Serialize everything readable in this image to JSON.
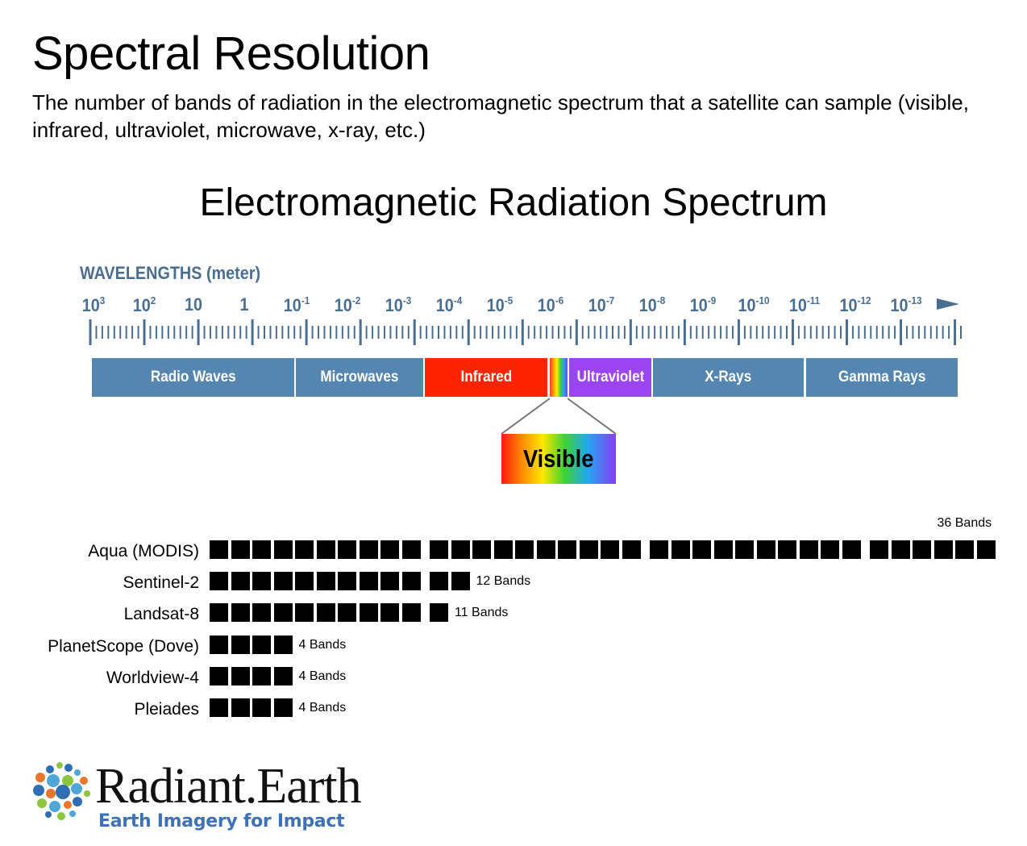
{
  "title": "Spectral Resolution",
  "subtitle": "The number of bands of radiation in the electromagnetic spectrum that a satellite can sample (visible, infrared, ultraviolet, microwave, x-ray, etc.)",
  "diagram_title": "Electromagnetic Radiation Spectrum",
  "wavelength_heading": "WAVELENGTHS (meter)",
  "wavelength_ticks": [
    {
      "base": "10",
      "exp": "3"
    },
    {
      "base": "10",
      "exp": "2"
    },
    {
      "base": "10",
      "exp": ""
    },
    {
      "base": "1",
      "exp": ""
    },
    {
      "base": "10",
      "exp": "-1"
    },
    {
      "base": "10",
      "exp": "-2"
    },
    {
      "base": "10",
      "exp": "-3"
    },
    {
      "base": "10",
      "exp": "-4"
    },
    {
      "base": "10",
      "exp": "-5"
    },
    {
      "base": "10",
      "exp": "-6"
    },
    {
      "base": "10",
      "exp": "-7"
    },
    {
      "base": "10",
      "exp": "-8"
    },
    {
      "base": "10",
      "exp": "-9"
    },
    {
      "base": "10",
      "exp": "-10"
    },
    {
      "base": "10",
      "exp": "-11"
    },
    {
      "base": "10",
      "exp": "-12"
    },
    {
      "base": "10",
      "exp": "-13"
    }
  ],
  "spectrum_bands": [
    {
      "label": "Radio Waves",
      "color": "#5585b1"
    },
    {
      "label": "Microwaves",
      "color": "#5585b1"
    },
    {
      "label": "Infrared",
      "color": "#ff2400"
    },
    {
      "label": "Ultraviolet",
      "color": "#9a44f2"
    },
    {
      "label": "X-Rays",
      "color": "#5585b1"
    },
    {
      "label": "Gamma Rays",
      "color": "#5585b1"
    }
  ],
  "visible_label": "Visible",
  "satellites": [
    {
      "name": "Aqua (MODIS)",
      "bands": 36,
      "band_label": "36 Bands"
    },
    {
      "name": "Sentinel-2",
      "bands": 12,
      "band_label": "12 Bands"
    },
    {
      "name": "Landsat-8",
      "bands": 11,
      "band_label": "11 Bands"
    },
    {
      "name": "PlanetScope (Dove)",
      "bands": 4,
      "band_label": "4 Bands"
    },
    {
      "name": "Worldview-4",
      "bands": 4,
      "band_label": "4 Bands"
    },
    {
      "name": "Pleiades",
      "bands": 4,
      "band_label": "4 Bands"
    }
  ],
  "logo": {
    "name": "Radiant.Earth",
    "tagline": "Earth Imagery for Impact"
  },
  "colors": {
    "accent": "#4a6e92",
    "spectrum_blue": "#5585b1",
    "tagline": "#3d72b8"
  }
}
